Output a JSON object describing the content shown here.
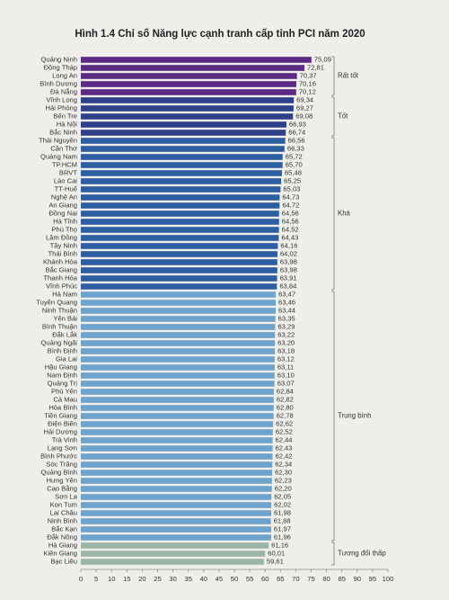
{
  "chart_data": {
    "type": "bar",
    "orientation": "horizontal",
    "title": "Hình 1.4 Chỉ số Năng lực cạnh tranh cấp tỉnh PCI năm 2020",
    "xlim": [
      0,
      100
    ],
    "xticks": [
      0,
      5,
      10,
      15,
      20,
      25,
      30,
      35,
      40,
      45,
      50,
      55,
      60,
      65,
      70,
      75,
      80,
      85,
      90,
      95,
      100
    ],
    "series": [
      {
        "name": "Rất tốt",
        "color": "#5a2a84",
        "categories": [
          "Quảng Ninh",
          "Đồng Tháp",
          "Long An",
          "Bình Dương",
          "Đà Nẵng"
        ],
        "values": [
          75.09,
          72.81,
          70.37,
          70.16,
          70.12
        ],
        "value_labels": [
          "75,09",
          "72,81",
          "70,37",
          "70,16",
          "70,12"
        ]
      },
      {
        "name": "Tốt",
        "color": "#2f3f8a",
        "categories": [
          "Vĩnh Long",
          "Hải Phòng",
          "Bến Tre",
          "Hà Nội",
          "Bắc Ninh"
        ],
        "values": [
          69.34,
          69.27,
          69.08,
          66.93,
          66.74
        ],
        "value_labels": [
          "69,34",
          "69,27",
          "69,08",
          "66,93",
          "66,74"
        ]
      },
      {
        "name": "Khá",
        "color": "#2d5fa0",
        "categories": [
          "Thái Nguyên",
          "Cần Thơ",
          "Quảng Nam",
          "TP.HCM",
          "BRVT",
          "Lào Cai",
          "TT-Huế",
          "Nghệ An",
          "An Giang",
          "Đồng Nai",
          "Hà Tĩnh",
          "Phú Thọ",
          "Lâm Đồng",
          "Tây Ninh",
          "Thái Bình",
          "Khánh Hòa",
          "Bắc Giang",
          "Thanh Hóa",
          "Vĩnh Phúc"
        ],
        "values": [
          66.56,
          66.33,
          65.72,
          65.7,
          65.48,
          65.25,
          65.03,
          64.73,
          64.72,
          64.56,
          64.56,
          64.52,
          64.43,
          64.16,
          64.02,
          63.98,
          63.98,
          63.91,
          63.84
        ],
        "value_labels": [
          "66,56",
          "66,33",
          "65,72",
          "65,70",
          "65,48",
          "65,25",
          "65,03",
          "64,73",
          "64,72",
          "64,56",
          "64,56",
          "64,52",
          "64,43",
          "64,16",
          "64,02",
          "63,98",
          "63,98",
          "63,91",
          "63,84"
        ]
      },
      {
        "name": "Trung bình",
        "color": "#6ea3cc",
        "categories": [
          "Hà Nam",
          "Tuyên Quang",
          "Ninh Thuận",
          "Yên Bái",
          "Bình Thuận",
          "Đắk Lắk",
          "Quảng Ngãi",
          "Bình Định",
          "Gia Lai",
          "Hậu Giang",
          "Nam Định",
          "Quảng Trị",
          "Phú Yên",
          "Cà Mau",
          "Hòa Bình",
          "Tiền Giang",
          "Điện Biên",
          "Hải Dương",
          "Trà Vinh",
          "Lạng Sơn",
          "Bình Phước",
          "Sóc Trăng",
          "Quảng Bình",
          "Hưng Yên",
          "Cao Bằng",
          "Sơn La",
          "Kon Tum",
          "Lai Châu",
          "Ninh Bình",
          "Bắc Kạn",
          "Đắk Nông"
        ],
        "values": [
          63.47,
          63.46,
          63.44,
          63.35,
          63.29,
          63.22,
          63.2,
          63.18,
          63.12,
          63.11,
          63.1,
          63.07,
          62.84,
          62.82,
          62.8,
          62.78,
          62.62,
          62.52,
          62.44,
          62.43,
          62.42,
          62.34,
          62.3,
          62.23,
          62.2,
          62.05,
          62.02,
          61.98,
          61.88,
          61.97,
          61.96
        ],
        "value_labels": [
          "63,47",
          "63,46",
          "63,44",
          "63,35",
          "63,29",
          "63,22",
          "63,20",
          "63,18",
          "63,12",
          "63,11",
          "63,10",
          "63,07",
          "62,84",
          "62,82",
          "62,80",
          "62,78",
          "62,62",
          "62,52",
          "62,44",
          "62,43",
          "62,42",
          "62,34",
          "62,30",
          "62,23",
          "62,20",
          "62,05",
          "62,02",
          "61,98",
          "61,88",
          "61,97",
          "61,96"
        ]
      },
      {
        "name": "Tương đối thấp",
        "color": "#9bb5a8",
        "categories": [
          "Hà Giang",
          "Kiên Giang",
          "Bạc Liêu"
        ],
        "values": [
          61.16,
          60.01,
          59.61
        ],
        "value_labels": [
          "61,16",
          "60,01",
          "59,61"
        ]
      }
    ]
  }
}
